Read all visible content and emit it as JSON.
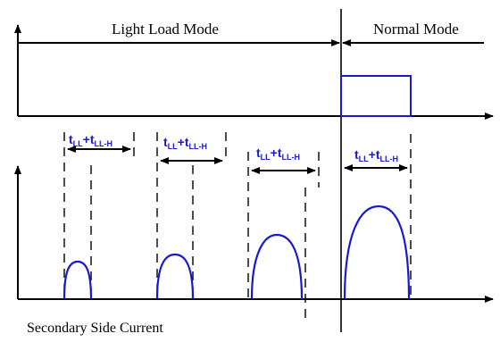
{
  "labels": {
    "light_load_mode": "Light Load Mode",
    "normal_mode": "Normal Mode",
    "secondary_side_current": "Secondary Side Current"
  },
  "interval_label": {
    "main": "t",
    "sub1": "LL",
    "plus": "+t",
    "sub2": "LL-H"
  },
  "colors": {
    "waveform": "#1a1acc",
    "lines": "#000000"
  }
}
